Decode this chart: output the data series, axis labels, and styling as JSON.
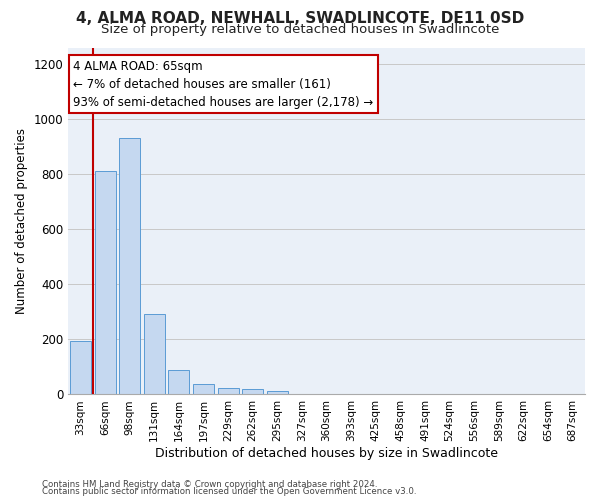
{
  "title": "4, ALMA ROAD, NEWHALL, SWADLINCOTE, DE11 0SD",
  "subtitle": "Size of property relative to detached houses in Swadlincote",
  "xlabel": "Distribution of detached houses by size in Swadlincote",
  "ylabel": "Number of detached properties",
  "categories": [
    "33sqm",
    "66sqm",
    "98sqm",
    "131sqm",
    "164sqm",
    "197sqm",
    "229sqm",
    "262sqm",
    "295sqm",
    "327sqm",
    "360sqm",
    "393sqm",
    "425sqm",
    "458sqm",
    "491sqm",
    "524sqm",
    "556sqm",
    "589sqm",
    "622sqm",
    "654sqm",
    "687sqm"
  ],
  "bar_values": [
    193,
    810,
    930,
    293,
    90,
    38,
    22,
    20,
    13,
    0,
    0,
    0,
    0,
    0,
    0,
    0,
    0,
    0,
    0,
    0,
    0
  ],
  "bar_color": "#c5d8f0",
  "bar_edge_color": "#5b9bd5",
  "vline_color": "#c00000",
  "annotation_line1": "4 ALMA ROAD: 65sqm",
  "annotation_line2": "← 7% of detached houses are smaller (161)",
  "annotation_line3": "93% of semi-detached houses are larger (2,178) →",
  "annotation_box_color": "#ffffff",
  "annotation_box_edge": "#c00000",
  "ylim": [
    0,
    1260
  ],
  "yticks": [
    0,
    200,
    400,
    600,
    800,
    1000,
    1200
  ],
  "grid_color": "#c8c8c8",
  "bg_color": "#eaf0f8",
  "footer_line1": "Contains HM Land Registry data © Crown copyright and database right 2024.",
  "footer_line2": "Contains public sector information licensed under the Open Government Licence v3.0.",
  "title_fontsize": 11,
  "subtitle_fontsize": 9.5
}
